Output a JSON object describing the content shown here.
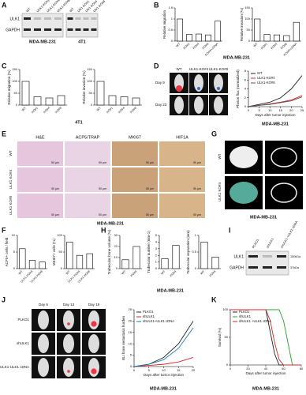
{
  "panel_a": {
    "letter": "A",
    "lanes_mda": [
      "WT",
      "ULK1-KO#1",
      "ULK1-KO#4",
      "ULK1-KO#8"
    ],
    "lanes_4t1": [
      "WT",
      "Ulk1-KO#1",
      "Ulk1-KO#4",
      "Ulk1-KO#8"
    ],
    "bands": [
      "ULK1",
      "GAPDH"
    ],
    "cell_lines": [
      "MDA-MB-231",
      "4T1"
    ]
  },
  "panel_b": {
    "letter": "B",
    "caption": "MDA-MB-231",
    "charts": [
      {
        "type": "bar",
        "ylabel": "Relative migration",
        "categories": [
          "WT",
          "KO#1",
          "KO#4",
          "KO#8",
          "KO#4+cDNA"
        ],
        "values": [
          1,
          0.3,
          0.32,
          0.28,
          0.9
        ],
        "color": "#ffffff",
        "ylim": [
          0,
          1.5
        ],
        "yticks": [
          0,
          0.5,
          1,
          1.5
        ]
      },
      {
        "type": "bar",
        "ylabel": "Relative invasion (%)",
        "categories": [
          "WT",
          "KO#1",
          "KO#4",
          "KO#8",
          "KO#4+cDNA"
        ],
        "values": [
          100,
          30,
          28,
          25,
          85
        ],
        "color": "#ffffff",
        "ylim": [
          0,
          150
        ],
        "yticks": [
          0,
          50,
          100,
          150
        ]
      }
    ]
  },
  "panel_c": {
    "letter": "C",
    "caption": "4T1",
    "charts": [
      {
        "type": "bar",
        "ylabel": "Relative migration (%)",
        "categories": [
          "WT",
          "KO#1",
          "KO#4",
          "KO#8"
        ],
        "values": [
          100,
          35,
          30,
          40
        ],
        "color": "#ffffff",
        "ylim": [
          0,
          150
        ],
        "yticks": [
          0,
          50,
          100,
          150
        ]
      },
      {
        "type": "bar",
        "ylabel": "Relative invasion (%)",
        "categories": [
          "WT",
          "KO#1",
          "KO#4",
          "KO#8"
        ],
        "values": [
          100,
          40,
          35,
          30
        ],
        "color": "#ffffff",
        "ylim": [
          0,
          150
        ],
        "yticks": [
          0,
          50,
          100,
          150
        ]
      }
    ]
  },
  "panel_d": {
    "letter": "D",
    "columns": [
      "WT",
      "ULK1-KO#4",
      "ULK1-KO#8"
    ],
    "rows": [
      "Day 9",
      "Day 23"
    ],
    "caption": "MDA-MB-231",
    "chart": {
      "type": "line",
      "ylabel": "Photon flux (normalized)",
      "xlabel": "Days after tumor injection",
      "x": [
        0,
        5,
        10,
        15,
        20,
        25
      ],
      "xlim": [
        0,
        25
      ],
      "xticks": [
        0,
        5,
        10,
        15,
        20,
        25
      ],
      "ylim": [
        0,
        8
      ],
      "yticks": [
        0,
        2,
        4,
        6,
        8
      ],
      "series": [
        {
          "name": "WT",
          "color": "#222222",
          "values": [
            0,
            0.5,
            1,
            2,
            4,
            7
          ]
        },
        {
          "name": "ULK1-KO#4",
          "color": "#d62728",
          "values": [
            0,
            0.3,
            0.6,
            1,
            1.5,
            2.5
          ]
        },
        {
          "name": "ULK1-KO#8",
          "color": "#555555",
          "values": [
            0,
            0.3,
            0.5,
            0.9,
            1.3,
            2.2
          ]
        }
      ]
    }
  },
  "panel_e": {
    "letter": "E",
    "columns": [
      "H&E",
      "ACP5/TRAP",
      "MKI67",
      "HIF1A"
    ],
    "rows": [
      "WT",
      "ULK1 KO#4",
      "ULK1 KO#8"
    ],
    "scale": "50 µm",
    "caption": "MDA-MB-231"
  },
  "panel_f": {
    "letter": "F",
    "charts": [
      {
        "type": "bar",
        "ylabel": "ACP5+ cells / field",
        "categories": [
          "WT",
          "ULK1 KO#4",
          "ULK1 KO#8"
        ],
        "values": [
          6,
          2.5,
          2
        ],
        "color": "#ffffff",
        "ylim": [
          0,
          10
        ],
        "yticks": [
          0,
          5,
          10
        ]
      },
      {
        "type": "bar",
        "ylabel": "MKI67+ cells (%)",
        "categories": [
          "WT",
          "ULK1 KO#4",
          "ULK1 KO#8"
        ],
        "values": [
          80,
          40,
          45
        ],
        "color": "#ffffff",
        "ylim": [
          0,
          100
        ],
        "yticks": [
          0,
          50,
          100
        ]
      }
    ]
  },
  "panel_g": {
    "letter": "G",
    "rows": [
      "WT",
      "ULK1 KO#4"
    ],
    "caption": "MDA-MB-231"
  },
  "panel_h": {
    "letter": "H",
    "caption": "MDA-MB-231",
    "charts": [
      {
        "type": "bar",
        "ylabel": "Trabecular bone volume (%)",
        "categories": [
          "WT",
          "KO#4"
        ],
        "values": [
          8,
          20
        ],
        "color": "#ffffff",
        "ylim": [
          0,
          30
        ],
        "yticks": [
          0,
          10,
          20,
          30
        ]
      },
      {
        "type": "bar",
        "ylabel": "Trabecular number (mm-1)",
        "categories": [
          "WT",
          "KO#4"
        ],
        "values": [
          1.5,
          3.5
        ],
        "color": "#ffffff",
        "ylim": [
          0,
          5
        ],
        "yticks": [
          0,
          1,
          2,
          3,
          4,
          5
        ]
      },
      {
        "type": "bar",
        "ylabel": "Trabecular separation (mm)",
        "categories": [
          "WT",
          "KO#4"
        ],
        "values": [
          0.8,
          0.35
        ],
        "color": "#ffffff",
        "ylim": [
          0,
          1
        ],
        "yticks": [
          0,
          0.5,
          1
        ]
      }
    ]
  },
  "panel_i": {
    "letter": "I",
    "lanes": [
      "PLKO1",
      "shULK1",
      "shULK1 +ULK1 cDNA"
    ],
    "bands": [
      "ULK1",
      "GAPDH"
    ],
    "markers": [
      "150kDa",
      "37kDa"
    ]
  },
  "panel_j": {
    "letter": "J",
    "columns": [
      "Day 6",
      "Day 13",
      "Day 19"
    ],
    "rows": [
      "PLKO1",
      "shULK1",
      "shULK1-ULK1 cDNA"
    ],
    "caption": "MDA-MB-231",
    "chart": {
      "type": "line",
      "ylabel": "BLI bone metastasis burden",
      "xlabel": "Days after tumor injection",
      "x": [
        0,
        5,
        10,
        15,
        20
      ],
      "xlim": [
        0,
        20
      ],
      "xticks": [
        0,
        5,
        10,
        15,
        20
      ],
      "ylim": [
        0,
        25
      ],
      "yticks": [
        0,
        5,
        10,
        15,
        20,
        25
      ],
      "series": [
        {
          "name": "PLKO1",
          "color": "#222222",
          "values": [
            0,
            1,
            4,
            10,
            20
          ]
        },
        {
          "name": "shULK1",
          "color": "#d62728",
          "values": [
            0,
            0.5,
            1,
            2,
            4
          ]
        },
        {
          "name": "shULK1+ULK1 cDNA",
          "color": "#1f77b4",
          "values": [
            0,
            1,
            3,
            8,
            17
          ]
        }
      ]
    }
  },
  "panel_k": {
    "letter": "K",
    "caption": "MDA-MB-231",
    "chart": {
      "type": "line",
      "ylabel": "Survival (%)",
      "xlabel": "Days after tumor injection",
      "x": [
        0,
        40,
        45,
        50,
        55,
        60,
        65,
        70,
        80
      ],
      "xlim": [
        0,
        80
      ],
      "xticks": [
        0,
        20,
        40,
        60,
        80
      ],
      "ylim": [
        0,
        100
      ],
      "yticks": [
        0,
        50,
        100
      ],
      "series": [
        {
          "name": "PLKO1",
          "color": "#222222",
          "values": [
            100,
            100,
            60,
            20,
            0,
            0,
            0,
            0,
            0
          ]
        },
        {
          "name": "shULK1",
          "color": "#2ca02c",
          "values": [
            100,
            100,
            100,
            100,
            100,
            80,
            40,
            0,
            0
          ]
        },
        {
          "name": "shULK1 +ULK1 cDNA",
          "color": "#d62728",
          "values": [
            100,
            100,
            80,
            40,
            10,
            0,
            0,
            0,
            0
          ]
        }
      ]
    }
  }
}
